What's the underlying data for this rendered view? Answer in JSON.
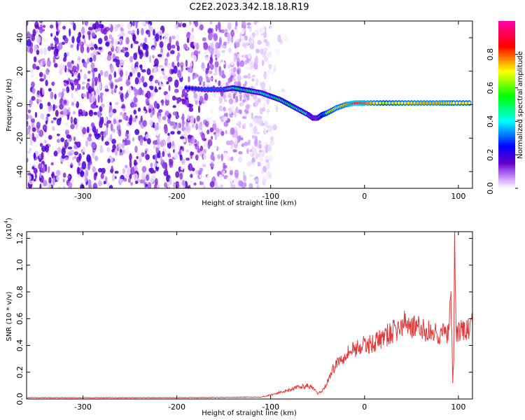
{
  "title": "C2E2.2023.342.18.18.R19",
  "colors": {
    "spectrogram_base": "#7a1cff",
    "snr_line": "#e23a3a",
    "axis": "#000000",
    "colorbar_stops": [
      "#ff00ff",
      "#ff0000",
      "#ffff00",
      "#00ff00",
      "#00ffff",
      "#0000ff",
      "#6600cc",
      "#ffffff"
    ]
  },
  "chart_data": [
    {
      "type": "heatmap",
      "panel": "spectrogram",
      "xlabel": "Height of straight line (km)",
      "ylabel": "Frequency (Hz)",
      "xlim": [
        -360,
        115
      ],
      "ylim": [
        -50,
        50
      ],
      "xticks": [
        -300,
        -200,
        -100,
        0,
        100
      ],
      "xtick_labels": [
        "-300",
        "-200",
        "-100",
        "0",
        "100"
      ],
      "yticks": [
        -40,
        -20,
        0,
        20,
        40
      ],
      "ytick_labels": [
        "-40",
        "-20",
        "0",
        "20",
        "40"
      ],
      "grid": false,
      "noise_region_x": [
        -360,
        -100
      ],
      "signal_track": {
        "x": [
          -190,
          -170,
          -150,
          -140,
          -130,
          -120,
          -110,
          -100,
          -90,
          -80,
          -70,
          -60,
          -55,
          -50,
          -45,
          -40,
          -30,
          -20,
          -10,
          0,
          20,
          40,
          60,
          80,
          95,
          115
        ],
        "y": [
          10,
          9,
          9,
          10,
          9,
          8,
          7,
          5,
          3,
          0,
          -3,
          -6,
          -8,
          -8,
          -6,
          -5,
          -2,
          0,
          1,
          1,
          1,
          1,
          1,
          1,
          1,
          1
        ],
        "amplitude": [
          0.25,
          0.3,
          0.3,
          0.45,
          0.5,
          0.45,
          0.4,
          0.45,
          0.5,
          0.5,
          0.45,
          0.4,
          0.35,
          0.3,
          0.55,
          0.65,
          0.7,
          0.75,
          0.85,
          0.8,
          0.65,
          0.7,
          0.75,
          0.75,
          0.7,
          0.7
        ]
      },
      "colorbar": {
        "label": "Normalized spectral amplitude",
        "range": [
          0.0,
          1.0
        ],
        "ticks": [
          0.0,
          0.2,
          0.4,
          0.6,
          0.8
        ],
        "tick_labels": [
          "0.0",
          "0.2",
          "0.4",
          "0.6",
          "0.8"
        ]
      }
    },
    {
      "type": "line",
      "panel": "snr",
      "xlabel": "Height of straight line (km)",
      "ylabel": "SNR (10 * v/v)",
      "y_multiplier_label": "(x10",
      "y_multiplier_exp": "4",
      "y_multiplier_close": ")",
      "xlim": [
        -360,
        115
      ],
      "ylim": [
        0.0,
        1.25
      ],
      "xticks": [
        -300,
        -200,
        -100,
        0,
        100
      ],
      "xtick_labels": [
        "-300",
        "-200",
        "-100",
        "0",
        "100"
      ],
      "yticks": [
        0.0,
        0.2,
        0.4,
        0.6,
        0.8,
        1.0,
        1.2
      ],
      "ytick_labels": [
        "0.0",
        "0.2",
        "0.4",
        "0.6",
        "0.8",
        "1.0",
        "1.2"
      ],
      "grid": false,
      "series": [
        {
          "x": [
            -360,
            -300,
            -200,
            -150,
            -110,
            -100,
            -90,
            -80,
            -70,
            -60,
            -55,
            -50,
            -45,
            -40,
            -35,
            -30,
            -25,
            -20,
            -10,
            0,
            10,
            20,
            30,
            40,
            45,
            50,
            60,
            70,
            80,
            90,
            92,
            94,
            95,
            96,
            97,
            98,
            100,
            110,
            115
          ],
          "y": [
            0.01,
            0.01,
            0.01,
            0.012,
            0.015,
            0.03,
            0.05,
            0.07,
            0.09,
            0.1,
            0.08,
            0.04,
            0.06,
            0.12,
            0.2,
            0.27,
            0.3,
            0.34,
            0.38,
            0.4,
            0.42,
            0.46,
            0.5,
            0.54,
            0.58,
            0.55,
            0.52,
            0.5,
            0.49,
            0.49,
            0.8,
            0.1,
            0.3,
            1.22,
            0.7,
            0.5,
            0.5,
            0.52,
            0.55
          ]
        }
      ]
    }
  ]
}
